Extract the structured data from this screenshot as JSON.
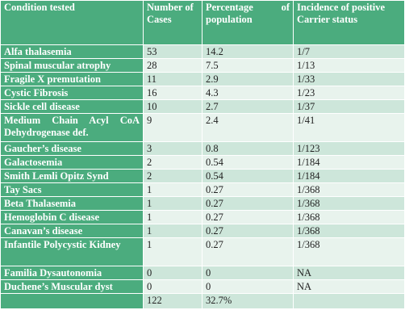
{
  "header": {
    "col1": "Condition tested",
    "col2": "Number of Cases",
    "col3_a": "Percentage",
    "col3_b": "of",
    "col3_c": "population",
    "col4": "Incidence of positive Carrier status"
  },
  "rows": [
    {
      "condition": "Alfa thalasemia",
      "cases": "53",
      "percentage": "14.2",
      "incidence": "1/7"
    },
    {
      "condition": "Spinal muscular atrophy",
      "cases": "28",
      "percentage": "7.5",
      "incidence": "1/13"
    },
    {
      "condition": "Fragile X premutation",
      "cases": "11",
      "percentage": "2.9",
      "incidence": "1/33"
    },
    {
      "condition": "Cystic Fibrosis",
      "cases": "16",
      "percentage": "4.3",
      "incidence": "1/23"
    },
    {
      "condition": "Sickle cell disease",
      "cases": "10",
      "percentage": "2.7",
      "incidence": "1/37"
    },
    {
      "condition_a": "Medium Chain Acyl CoA",
      "condition_b": "Dehydrogenase def.",
      "cases": "9",
      "percentage": "2.4",
      "incidence": "1/41"
    },
    {
      "condition": "Gaucher’s disease",
      "cases": "3",
      "percentage": "0.8",
      "incidence": "1/123"
    },
    {
      "condition": "Galactosemia",
      "cases": "2",
      "percentage": "0.54",
      "incidence": "1/184"
    },
    {
      "condition": "Smith Lemli Opitz Synd",
      "cases": "2",
      "percentage": "0.54",
      "incidence": "1/184"
    },
    {
      "condition": "Tay Sacs",
      "cases": "1",
      "percentage": "0.27",
      "incidence": "1/368"
    },
    {
      "condition": "Beta Thalasemia",
      "cases": "1",
      "percentage": "0.27",
      "incidence": "1/368"
    },
    {
      "condition": "Hemoglobin C disease",
      "cases": "1",
      "percentage": "0.27",
      "incidence": "1/368"
    },
    {
      "condition": "Canavan’s disease",
      "cases": "1",
      "percentage": "0.27",
      "incidence": "1/368"
    },
    {
      "condition": "Infantile Polycystic Kidney",
      "cases": "1",
      "percentage": "0.27",
      "incidence": "1/368"
    },
    {
      "condition": "Familia Dysautonomia",
      "cases": "0",
      "percentage": "0",
      "incidence": "NA"
    },
    {
      "condition": "Duchene’s Muscular dyst",
      "cases": "0",
      "percentage": "0",
      "incidence": "NA"
    }
  ],
  "total": {
    "cases": "122",
    "percentage": "32.7%"
  },
  "colors": {
    "header_green": "#4bac7e",
    "row_light": "#cde6da",
    "row_lighter": "#e8f3ed"
  }
}
